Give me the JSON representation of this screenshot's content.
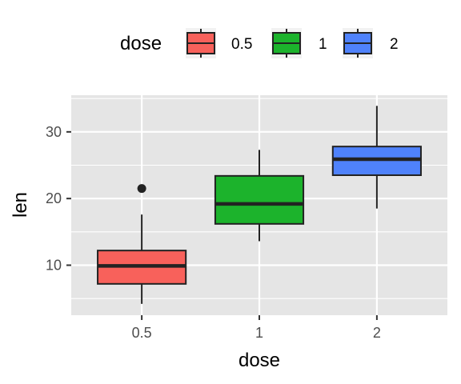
{
  "chart_data": {
    "type": "boxplot",
    "title": "",
    "xlabel": "dose",
    "ylabel": "len",
    "categories": [
      "0.5",
      "1",
      "2"
    ],
    "ylim": [
      2.5,
      35.5
    ],
    "yticks": [
      10,
      20,
      30
    ],
    "grid": true,
    "legend": {
      "title": "dose",
      "position": "top",
      "entries": [
        "0.5",
        "1",
        "2"
      ]
    },
    "colors": {
      "0.5": "#f8615b",
      "1": "#1cb32c",
      "2": "#4f82fb",
      "panel": "#e5e5e5",
      "gridline": "#ffffff",
      "outline": "#222222"
    },
    "boxes": [
      {
        "category": "0.5",
        "min": 4.2,
        "q1": 7.2,
        "median": 9.9,
        "q3": 12.2,
        "max": 17.6,
        "outliers": [
          21.5
        ]
      },
      {
        "category": "1",
        "min": 13.6,
        "q1": 16.2,
        "median": 19.2,
        "q3": 23.4,
        "max": 27.3,
        "outliers": []
      },
      {
        "category": "2",
        "min": 18.5,
        "q1": 23.5,
        "median": 25.9,
        "q3": 27.8,
        "max": 33.9,
        "outliers": []
      }
    ]
  }
}
